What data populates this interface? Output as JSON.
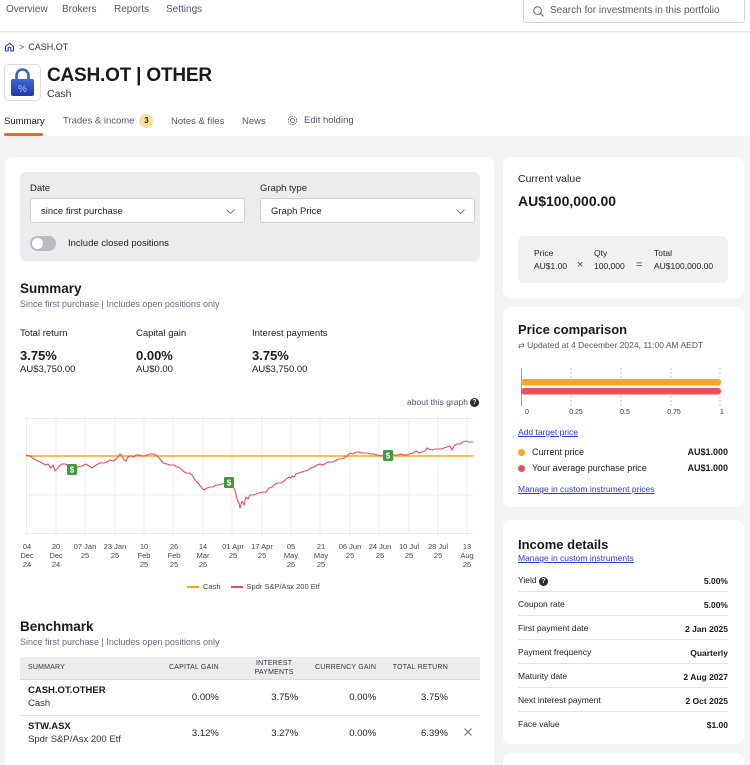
{
  "topnav": {
    "items": [
      "Overview",
      "Brokers",
      "Reports",
      "Settings"
    ],
    "search_placeholder": "Search for investments in this portfolio"
  },
  "breadcrumb": {
    "current": "CASH.OT",
    "separator": ">"
  },
  "holding": {
    "title": "CASH.OT | OTHER",
    "subtitle": "Cash",
    "icon": "lock-percent-icon"
  },
  "tabs": [
    {
      "label": "Summary",
      "active": true
    },
    {
      "label": "Trades & income",
      "badge": "3"
    },
    {
      "label": "Notes & files"
    },
    {
      "label": "News"
    },
    {
      "label": "Edit holding",
      "icon": "gear-icon"
    }
  ],
  "filters": {
    "date_label": "Date",
    "date_value": "since first purchase",
    "graph_type_label": "Graph type",
    "graph_type_value": "Graph Price",
    "toggle_label": "Include closed positions",
    "toggle_on": false
  },
  "summary": {
    "title": "Summary",
    "subtitle": "Since first purchase | Includes open positions only",
    "metrics": [
      {
        "label": "Total return",
        "pct": "3.75%",
        "amount": "AU$3,750.00"
      },
      {
        "label": "Capital gain",
        "pct": "0.00%",
        "amount": "AU$0.00"
      },
      {
        "label": "Interest payments",
        "pct": "3.75%",
        "amount": "AU$3,750.00"
      }
    ]
  },
  "graph": {
    "about_label": "about this graph",
    "legend": [
      {
        "label": "Cash",
        "color": "#f5a623"
      },
      {
        "label": "Spdr S&P/Asx 200 Etf",
        "color": "#e8505b"
      }
    ]
  },
  "chart_data": {
    "type": "line",
    "title": "",
    "xlabel": "",
    "ylabel": "",
    "grid": true,
    "legend_position": "bottom",
    "x_tick_labels": [
      "04 Dec 24",
      "20 Dec 24",
      "07 Jan 25",
      "23 Jan 25",
      "10 Feb 25",
      "26 Feb 25",
      "14 Mar 25",
      "01 Apr 25",
      "17 Apr 25",
      "05 May 25",
      "21 May 25",
      "06 Jun 25",
      "24 Jun 25",
      "10 Jul 25",
      "28 Jul 25",
      "13 Aug 25"
    ],
    "series": [
      {
        "name": "Cash",
        "color": "#f5a623",
        "relative_values": [
          0,
          0,
          0,
          0,
          0,
          0,
          0,
          0,
          0,
          0,
          0,
          0,
          0,
          0,
          0,
          0
        ]
      },
      {
        "name": "Spdr S&P/Asx 200 Etf",
        "color": "#e8505b",
        "relative_values": [
          0,
          -3.5,
          -2.5,
          -1.5,
          0.2,
          -4,
          -8,
          -6.5,
          -9,
          -6,
          -3,
          -1.5,
          1,
          0.2,
          1.5,
          3.5
        ]
      }
    ],
    "income_markers": [
      "24 Dec 24",
      "01 Apr 25",
      "01 Jul 25"
    ]
  },
  "benchmark": {
    "title": "Benchmark",
    "subtitle": "Since first purchase | Includes open positions only",
    "columns": [
      "SUMMARY",
      "CAPITAL GAIN",
      "INTEREST PAYMENTS",
      "CURRENCY GAIN",
      "TOTAL RETURN"
    ],
    "rows": [
      {
        "code": "CASH.OT.OTHER",
        "name": "Cash",
        "capital_gain": "0.00%",
        "interest_payments": "3.75%",
        "currency_gain": "0.00%",
        "total_return": "3.75%",
        "removable": false
      },
      {
        "code": "STW.ASX",
        "name": "Spdr S&P/Asx 200 Etf",
        "capital_gain": "3.12%",
        "interest_payments": "3.27%",
        "currency_gain": "0.00%",
        "total_return": "6.39%",
        "removable": true
      }
    ]
  },
  "current_value": {
    "label": "Current value",
    "value": "AU$100,000.00",
    "price_label": "Price",
    "price": "AU$1.00",
    "qty_label": "Qty",
    "qty": "100,000",
    "total_label": "Total",
    "total": "AU$100,000.00",
    "times": "×",
    "equals": "="
  },
  "price_comparison": {
    "title": "Price comparison",
    "updated": "Updated at 4 December 2024, 11:00 AM AEDT",
    "axis": [
      "0",
      "0.25",
      "0.5",
      "0.75",
      "1"
    ],
    "add_target": "Add target price",
    "rows": [
      {
        "label": "Current price",
        "value": "AU$1.000",
        "color": "#f5a623"
      },
      {
        "label": "Your average purchase price",
        "value": "AU$1.000",
        "color": "#e8505b"
      }
    ],
    "manage_link": "Manage in custom instrument prices"
  },
  "income_details": {
    "title": "Income details",
    "manage_link": "Manage in custom instruments",
    "rows": [
      {
        "label": "Yield",
        "value": "5.00%",
        "help": true
      },
      {
        "label": "Coupon rate",
        "value": "5.00%"
      },
      {
        "label": "First payment date",
        "value": "2 Jan 2025"
      },
      {
        "label": "Payment frequency",
        "value": "Quarterly"
      },
      {
        "label": "Maturity date",
        "value": "2 Aug 2027"
      },
      {
        "label": "Next interest payment",
        "value": "2 Oct 2025"
      },
      {
        "label": "Face value",
        "value": "$1.00"
      }
    ]
  }
}
